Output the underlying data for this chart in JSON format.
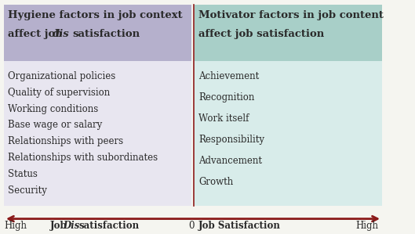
{
  "left_title_line1": "Hygiene factors in job context",
  "left_title_line2": "affect job ",
  "left_title_italic": "dis",
  "left_title_rest": "satisfaction",
  "right_title_line1": "Motivator factors in job content",
  "right_title_line2": "affect job satisfaction",
  "left_items": [
    "Organizational policies",
    "Quality of supervision",
    "Working conditions",
    "Base wage or salary",
    "Relationships with peers",
    "Relationships with subordinates",
    "Status",
    "Security"
  ],
  "right_items": [
    "Achievement",
    "Recognition",
    "Work itself",
    "Responsibility",
    "Advancement",
    "Growth"
  ],
  "left_bg_header": "#b5b0cc",
  "right_bg_header": "#a8cfc8",
  "left_bg_body": "#e8e6f0",
  "right_bg_body": "#d8ecea",
  "arrow_color": "#8b1a1a",
  "divider_color": "#8b1a1a",
  "text_color": "#2a2a2a",
  "axis_bottom_label_left_high": "High",
  "axis_bottom_label_left_mid": "Job ",
  "axis_bottom_label_left_mid_italic": "Dis",
  "axis_bottom_label_left_mid_rest": "satisfaction",
  "axis_bottom_zero": "0",
  "axis_bottom_label_right_mid": "Job Satisfaction",
  "axis_bottom_label_right_high": "High"
}
